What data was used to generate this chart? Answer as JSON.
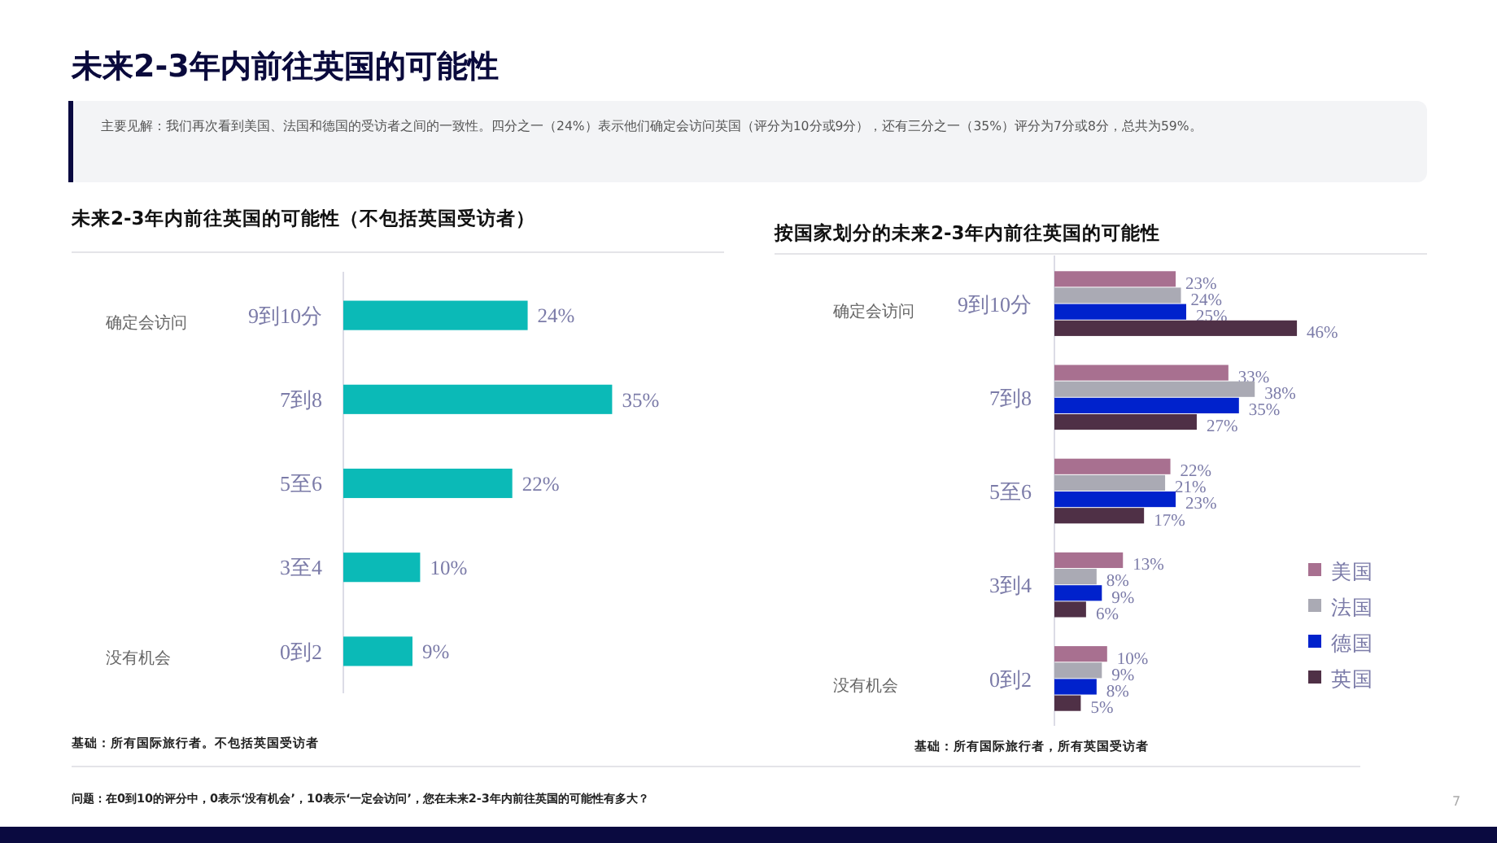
{
  "chart_data": [
    {
      "type": "other",
      "title": "未来2-3年内前往英国的可能性",
      "annotations": [
        "主要见解：我们再次看到美国、法国和德国的受访者之间的一致性。四分之一（24%）表示他们确定会访问英国（评分为10分或9分），还有三分之一（35%）评分为7分或8分，总共为59%。",
        "问题：在0到10的评分中，0表示‘没有机会’，10表示‘一定会访问’，您在未来2-3年内前往英国的可能性有多大？",
        "7"
      ]
    },
    {
      "type": "bar",
      "orientation": "horizontal",
      "title": "未来2-3年内前往英国的可能性（不包括英国受访者）",
      "categories": [
        "9到10分",
        "7到8",
        "5至6",
        "3至4",
        "0到2"
      ],
      "values": [
        24,
        35,
        22,
        10,
        9
      ],
      "color": "#0bbab7",
      "value_labels": [
        "24%",
        "35%",
        "22%",
        "10%",
        "9%"
      ],
      "annotations": [
        "确定会访问",
        "没有机会",
        "基础：所有国际旅行者。不包括英国受访者"
      ]
    },
    {
      "type": "bar",
      "orientation": "horizontal",
      "title": "按国家划分的未来2-3年内前往英国的可能性",
      "categories": [
        "9到10分",
        "7到8",
        "5至6",
        "3到4",
        "0到2"
      ],
      "legend": "right",
      "series": [
        {
          "name": "美国",
          "color": "#a87090",
          "values": [
            23,
            33,
            22,
            13,
            10
          ],
          "value_labels": [
            "23%",
            "33%",
            "22%",
            "13%",
            "10%"
          ]
        },
        {
          "name": "法国",
          "color": "#aaaab4",
          "values": [
            24,
            38,
            21,
            8,
            9
          ],
          "value_labels": [
            "24%",
            "38%",
            "21%",
            "8%",
            "9%"
          ]
        },
        {
          "name": "德国",
          "color": "#0022cc",
          "values": [
            25,
            35,
            23,
            9,
            8
          ],
          "value_labels": [
            "25%",
            "35%",
            "23%",
            "9%",
            "8%"
          ]
        },
        {
          "name": "英国",
          "color": "#4f3046",
          "values": [
            46,
            27,
            17,
            6,
            5
          ],
          "value_labels": [
            "46%",
            "27%",
            "17%",
            "6%",
            "5%"
          ]
        }
      ],
      "annotations": [
        "确定会访问",
        "没有机会",
        "基础：所有国际旅行者，所有英国受访者"
      ]
    }
  ]
}
